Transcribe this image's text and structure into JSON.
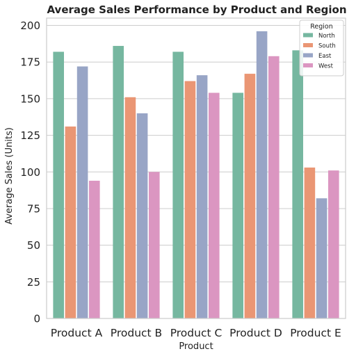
{
  "chart_data": {
    "type": "bar",
    "title": "Average Sales Performance by Product and Region",
    "xlabel": "Product",
    "ylabel": "Average Sales (Units)",
    "categories": [
      "Product A",
      "Product B",
      "Product C",
      "Product D",
      "Product E"
    ],
    "ylim": [
      0,
      205
    ],
    "yticks": [
      0,
      25,
      50,
      75,
      100,
      125,
      150,
      175,
      200
    ],
    "grid": "horizontal",
    "legend": {
      "title": "Region",
      "placement": "top-right"
    },
    "series": [
      {
        "name": "North",
        "color": "#76b7a0",
        "values": [
          182,
          186,
          182,
          154,
          183
        ]
      },
      {
        "name": "South",
        "color": "#ea9674",
        "values": [
          131,
          151,
          162,
          167,
          103
        ]
      },
      {
        "name": "East",
        "color": "#98a5c6",
        "values": [
          172,
          140,
          166,
          196,
          82
        ]
      },
      {
        "name": "West",
        "color": "#db96c1",
        "values": [
          94,
          100,
          154,
          179,
          101
        ]
      }
    ]
  }
}
